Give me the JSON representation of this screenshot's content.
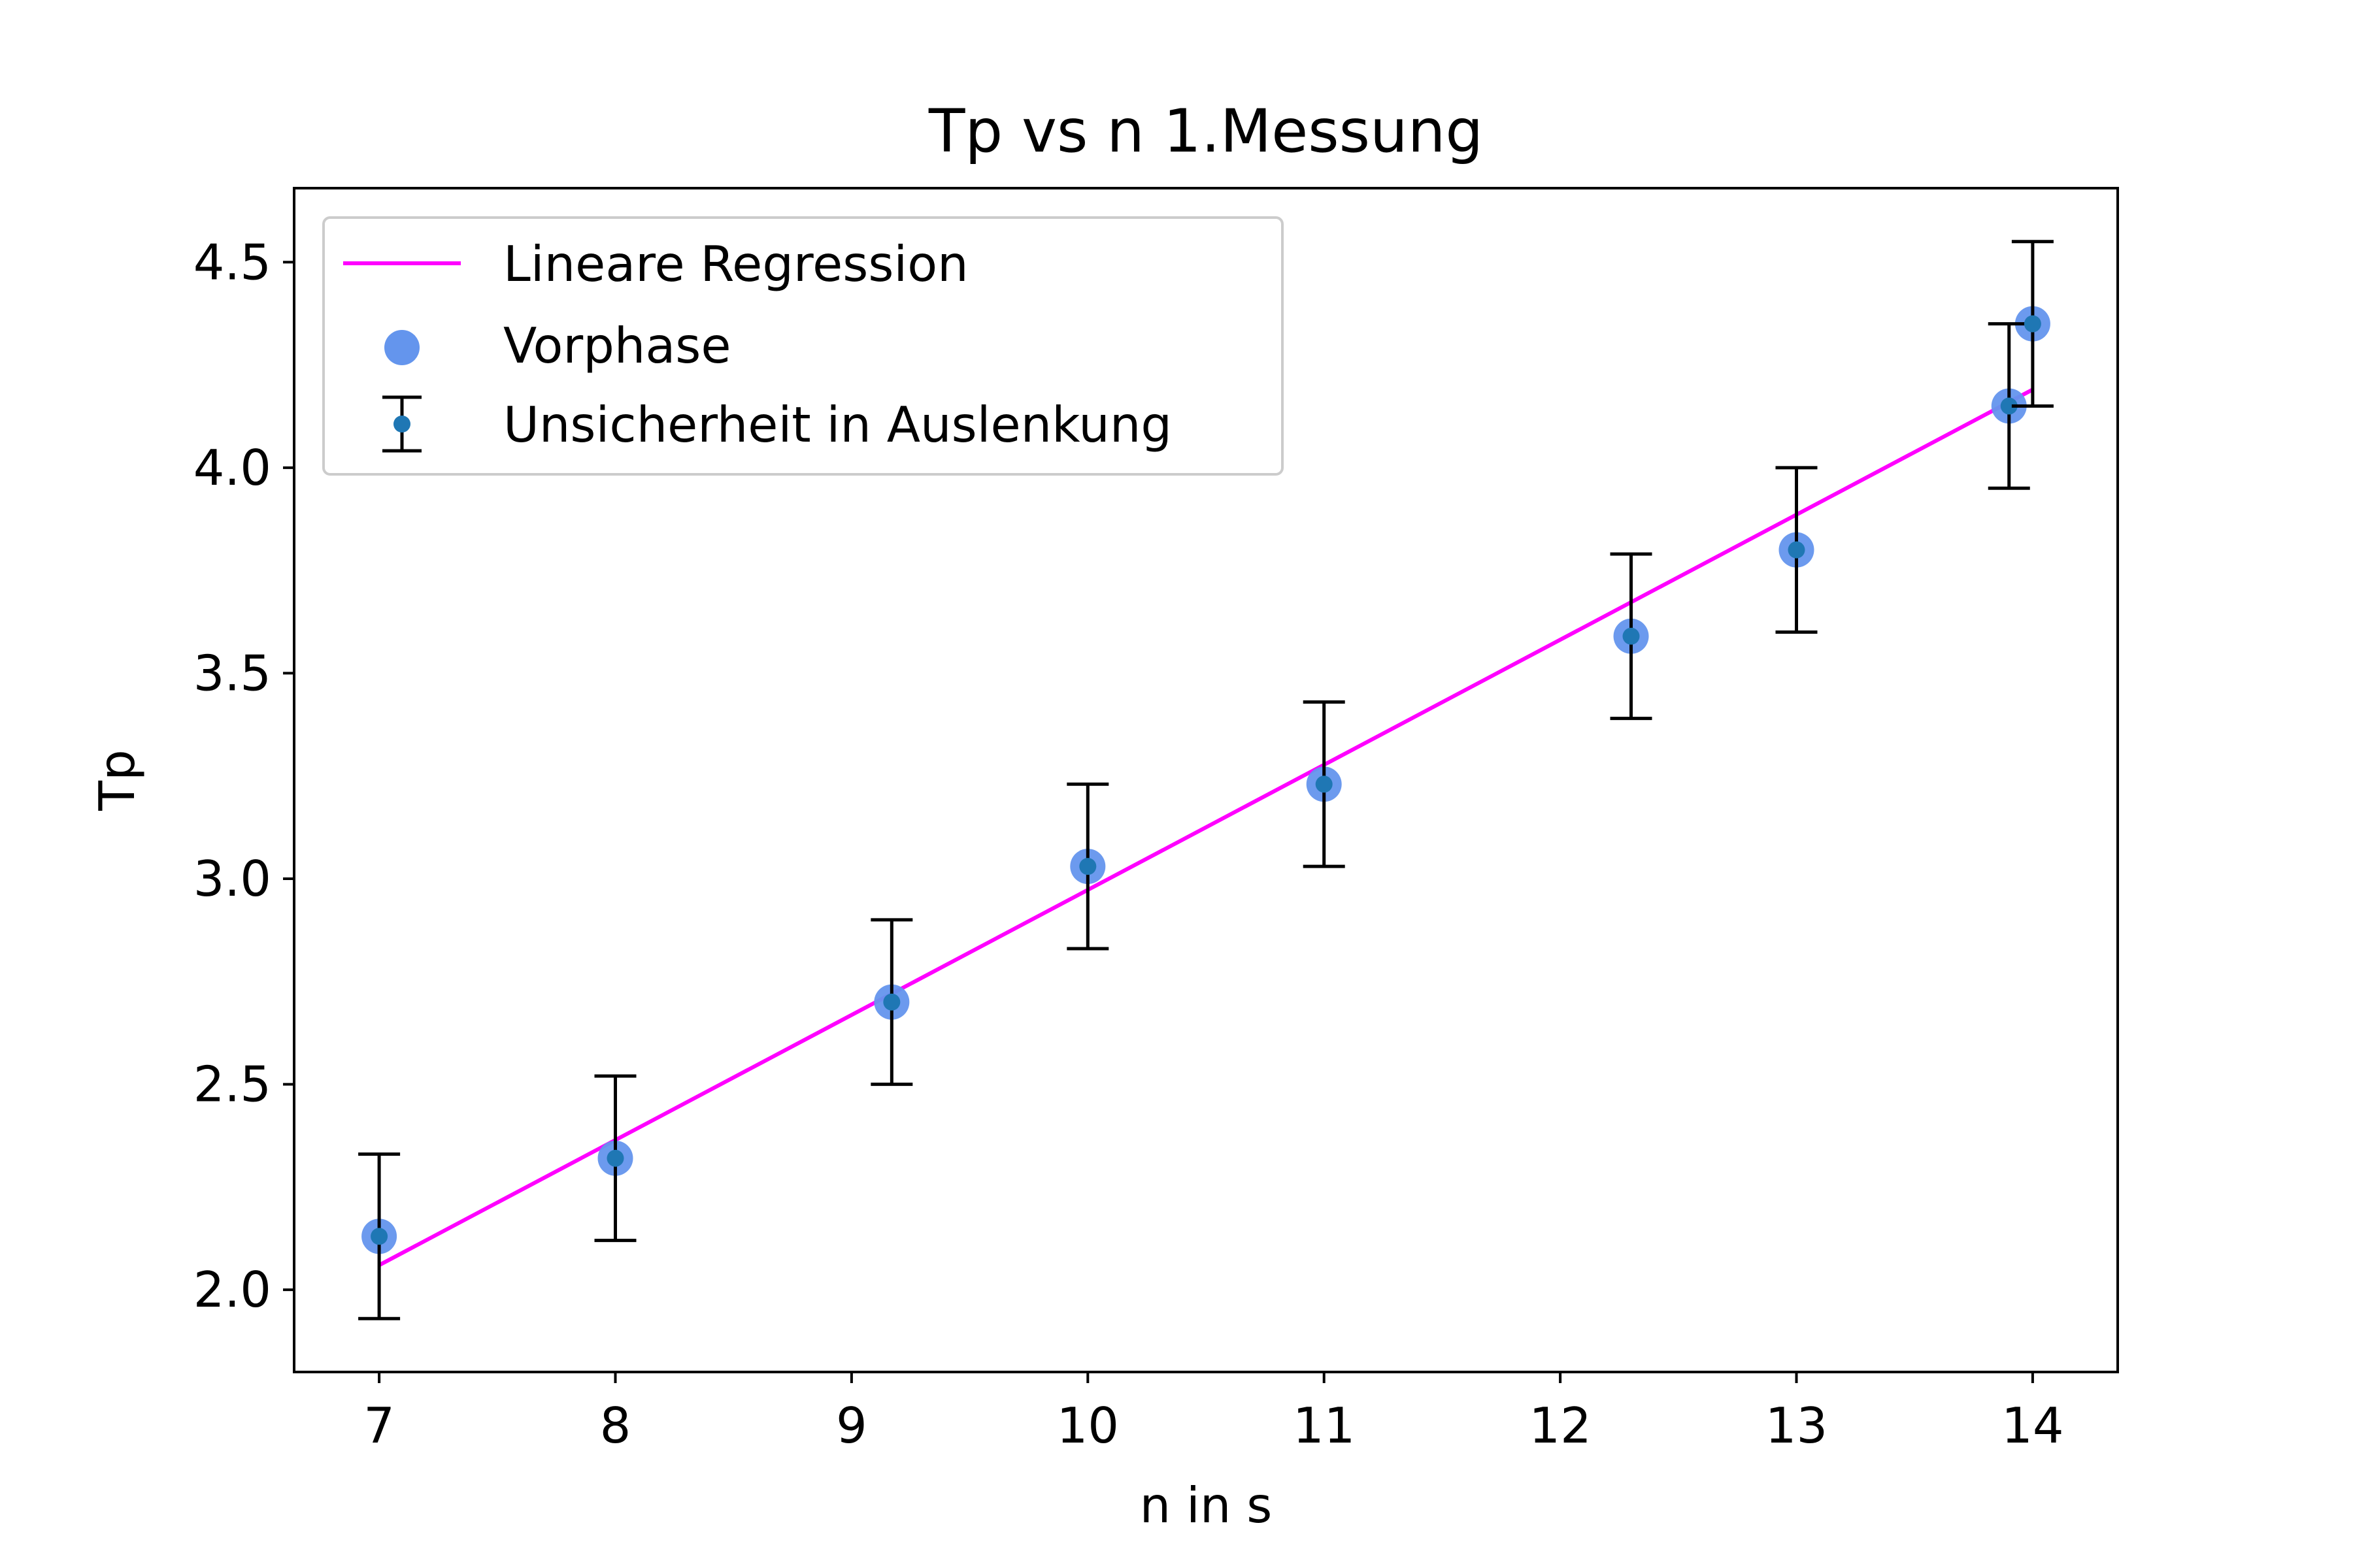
{
  "chart_data": {
    "type": "scatter",
    "title": "Tp vs n 1.Messung",
    "xlabel": "n in s",
    "ylabel": "Tp",
    "xlim": [
      6.64,
      14.36
    ],
    "ylim": [
      1.8,
      4.68
    ],
    "xticks": [
      7,
      8,
      9,
      10,
      11,
      12,
      13,
      14
    ],
    "xtick_labels": [
      "7",
      "8",
      "9",
      "10",
      "11",
      "12",
      "13",
      "14"
    ],
    "yticks": [
      2.0,
      2.5,
      3.0,
      3.5,
      4.0,
      4.5
    ],
    "ytick_labels": [
      "2.0",
      "2.5",
      "3.0",
      "3.5",
      "4.0",
      "4.5"
    ],
    "grid": false,
    "legend_position": "upper-left",
    "series": [
      {
        "name": "Lineare Regression",
        "kind": "line",
        "color": "#ff00ff",
        "x": [
          7.0,
          14.0
        ],
        "y": [
          2.06,
          4.19
        ]
      },
      {
        "name": "Vorphase",
        "kind": "scatter",
        "color": "#6495ed",
        "x": [
          7.0,
          8.0,
          9.17,
          10.0,
          11.0,
          12.3,
          13.0,
          13.9,
          14.0
        ],
        "y": [
          2.13,
          2.32,
          2.7,
          3.03,
          3.23,
          3.59,
          3.8,
          4.15,
          4.35
        ]
      },
      {
        "name": "Unsicherheit in Auslenkung",
        "kind": "errorbar",
        "color": "#000000",
        "marker_color": "#1f77b4",
        "x": [
          7.0,
          8.0,
          9.17,
          10.0,
          11.0,
          12.3,
          13.0,
          13.9,
          14.0
        ],
        "y": [
          2.13,
          2.32,
          2.7,
          3.03,
          3.23,
          3.59,
          3.8,
          4.15,
          4.35
        ],
        "yerr": 0.2
      }
    ]
  }
}
